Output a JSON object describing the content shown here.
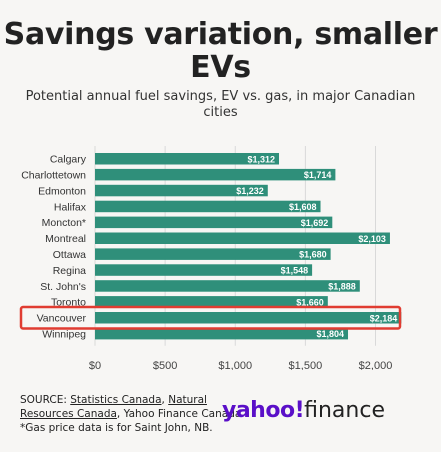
{
  "title": "Savings variation, smaller EVs",
  "subtitle": "Potential annual fuel savings, EV vs. gas, in major Canadian cities",
  "source": {
    "prefix": "SOURCE: ",
    "link1": "Statistics Canada",
    "sep1": ", ",
    "link2": "Natural Resources Canada",
    "suffix": ", Yahoo Finance Canada",
    "note": "*Gas price data is for Saint John, NB."
  },
  "logo": {
    "brand": "yahoo!",
    "product": "finance"
  },
  "colors": {
    "bar": "#2f8f7a",
    "highlight_box": "#e03c31",
    "logo": "#5a0fc8"
  },
  "chart_data": {
    "type": "bar",
    "orientation": "horizontal",
    "categories": [
      "Calgary",
      "Charlottetown",
      "Edmonton",
      "Halifax",
      "Moncton*",
      "Montreal",
      "Ottawa",
      "Regina",
      "St. John's",
      "Toronto",
      "Vancouver",
      "Winnipeg"
    ],
    "values": [
      1312,
      1714,
      1232,
      1608,
      1692,
      2103,
      1680,
      1548,
      1888,
      1660,
      2184,
      1804
    ],
    "value_labels": [
      "$1,312",
      "$1,714",
      "$1,232",
      "$1,608",
      "$1,692",
      "$2,103",
      "$1,680",
      "$1,548",
      "$1,888",
      "$1,660",
      "$2,184",
      "$1,804"
    ],
    "xticks": [
      0,
      500,
      1000,
      1500,
      2000
    ],
    "xtick_labels": [
      "$0",
      "$500",
      "$1,000",
      "$1,500",
      "$2,000"
    ],
    "xlim": [
      0,
      2230
    ],
    "highlight": "Vancouver",
    "grid": true
  }
}
